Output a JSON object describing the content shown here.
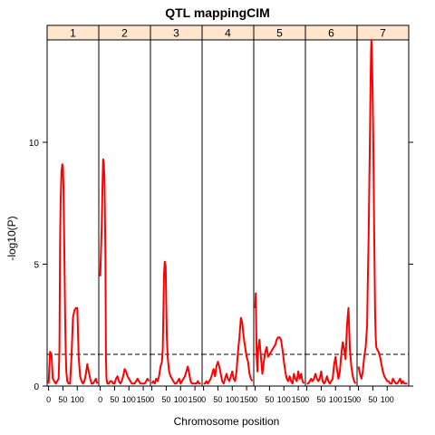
{
  "chart_data": {
    "type": "line",
    "title": "QTL mappingCIM",
    "xlabel": "Chromosome position",
    "ylabel": "-log10(P)",
    "ylim": [
      0,
      14.2
    ],
    "y_ticks": [
      0,
      5,
      10
    ],
    "threshold": 1.3,
    "colors": {
      "series": "#ff0000",
      "strip": "#ffe5cc",
      "threshold": "#000000"
    },
    "panels": [
      {
        "label": "1",
        "xlim": [
          -5,
          175
        ],
        "ticks": [
          0,
          50,
          100
        ],
        "x": [
          0,
          5,
          10,
          15,
          20,
          25,
          30,
          35,
          38,
          40,
          42,
          45,
          48,
          50,
          52,
          55,
          58,
          60,
          62,
          65,
          70,
          75,
          80,
          85,
          90,
          95,
          100,
          105,
          110,
          115,
          120,
          125,
          130,
          135,
          140,
          145,
          150,
          155,
          160,
          165,
          170
        ],
        "y": [
          0.1,
          1.4,
          1.3,
          0.3,
          0.2,
          0.1,
          0.2,
          0.3,
          1.5,
          6.0,
          7.5,
          8.8,
          9.1,
          9.0,
          8.2,
          5.5,
          2.5,
          1.3,
          0.6,
          0.2,
          0.1,
          0.1,
          1.2,
          2.8,
          3.1,
          3.2,
          3.2,
          1.2,
          0.4,
          0.2,
          0.1,
          0.2,
          0.5,
          0.9,
          0.6,
          0.3,
          0.1,
          0.1,
          0.2,
          0.3,
          0.1
        ]
      },
      {
        "label": "2",
        "xlim": [
          -5,
          175
        ],
        "ticks": [
          0,
          50,
          100,
          150
        ],
        "x": [
          0,
          5,
          8,
          10,
          12,
          15,
          18,
          20,
          22,
          25,
          30,
          35,
          40,
          45,
          50,
          55,
          60,
          65,
          70,
          75,
          80,
          85,
          90,
          95,
          100,
          105,
          110,
          115,
          120,
          125,
          130,
          135,
          140,
          145,
          150,
          155,
          160,
          165,
          170
        ],
        "y": [
          4.5,
          6.5,
          8.2,
          9.3,
          9.2,
          8.5,
          5.5,
          1.2,
          0.3,
          0.1,
          0.1,
          0.2,
          0.2,
          0.1,
          0.1,
          0.3,
          0.4,
          0.2,
          0.1,
          0.2,
          0.4,
          0.7,
          0.6,
          0.4,
          0.3,
          0.2,
          0.1,
          0.1,
          0.1,
          0.2,
          0.3,
          0.2,
          0.1,
          0.1,
          0.1,
          0.1,
          0.2,
          0.3,
          0.2
        ]
      },
      {
        "label": "3",
        "xlim": [
          -5,
          175
        ],
        "ticks": [
          0,
          50,
          100,
          150
        ],
        "x": [
          0,
          5,
          10,
          15,
          20,
          25,
          30,
          35,
          38,
          40,
          42,
          45,
          48,
          50,
          52,
          55,
          60,
          65,
          70,
          75,
          80,
          85,
          90,
          95,
          100,
          105,
          110,
          115,
          120,
          125,
          130,
          135,
          140,
          145,
          150,
          155,
          160,
          165,
          170
        ],
        "y": [
          0.1,
          0.2,
          0.1,
          0.3,
          0.2,
          0.4,
          0.8,
          1.0,
          1.5,
          3.0,
          4.5,
          5.1,
          4.9,
          3.5,
          2.0,
          1.2,
          0.6,
          0.4,
          0.3,
          0.2,
          0.1,
          0.1,
          0.2,
          0.3,
          0.1,
          0.2,
          0.3,
          0.4,
          0.6,
          0.8,
          0.5,
          0.2,
          0.1,
          0.1,
          0.1,
          0.1,
          0.2,
          0.1,
          0.1
        ]
      },
      {
        "label": "4",
        "xlim": [
          -5,
          175
        ],
        "ticks": [
          0,
          50,
          100,
          150
        ],
        "x": [
          0,
          5,
          10,
          15,
          20,
          25,
          30,
          35,
          40,
          45,
          50,
          55,
          60,
          65,
          70,
          75,
          80,
          85,
          90,
          95,
          100,
          105,
          110,
          115,
          120,
          125,
          130,
          135,
          140,
          145,
          150,
          155,
          160,
          165,
          170
        ],
        "y": [
          0.1,
          0.1,
          0.2,
          0.1,
          0.2,
          0.3,
          0.5,
          0.7,
          0.4,
          0.8,
          1.0,
          0.8,
          0.5,
          0.2,
          0.1,
          0.3,
          0.5,
          0.3,
          0.2,
          0.4,
          0.6,
          0.3,
          0.2,
          0.6,
          1.4,
          2.0,
          2.8,
          2.6,
          2.0,
          1.6,
          1.2,
          1.0,
          0.5,
          0.3,
          0.2
        ]
      },
      {
        "label": "5",
        "xlim": [
          -5,
          175
        ],
        "ticks": [
          0,
          50,
          100,
          150
        ],
        "x": [
          0,
          2,
          5,
          8,
          10,
          15,
          20,
          25,
          30,
          35,
          40,
          45,
          50,
          55,
          60,
          65,
          70,
          75,
          80,
          85,
          90,
          95,
          100,
          105,
          110,
          115,
          120,
          125,
          130,
          135,
          140,
          145,
          150,
          155,
          160,
          165,
          170
        ],
        "y": [
          3.2,
          3.8,
          1.2,
          0.6,
          1.5,
          1.9,
          1.2,
          0.5,
          1.0,
          1.4,
          1.6,
          1.2,
          1.3,
          1.4,
          1.5,
          1.6,
          1.7,
          1.9,
          2.0,
          2.0,
          1.9,
          1.5,
          1.0,
          0.6,
          0.3,
          0.2,
          0.4,
          0.2,
          0.1,
          0.5,
          0.3,
          0.2,
          0.6,
          0.3,
          0.5,
          0.2,
          0.1
        ]
      },
      {
        "label": "6",
        "xlim": [
          -5,
          175
        ],
        "ticks": [
          0,
          50,
          100,
          150
        ],
        "x": [
          0,
          5,
          10,
          15,
          20,
          25,
          30,
          35,
          40,
          45,
          50,
          55,
          60,
          65,
          70,
          75,
          80,
          85,
          90,
          95,
          100,
          105,
          110,
          115,
          120,
          125,
          130,
          135,
          140,
          145,
          150,
          155,
          160,
          165,
          170
        ],
        "y": [
          0.1,
          0.1,
          0.2,
          0.3,
          0.2,
          0.3,
          0.5,
          0.3,
          0.2,
          0.3,
          0.6,
          0.2,
          0.1,
          0.2,
          0.4,
          0.2,
          0.1,
          0.2,
          0.3,
          0.9,
          1.2,
          0.7,
          0.3,
          0.6,
          1.3,
          1.8,
          1.5,
          1.1,
          2.5,
          3.2,
          1.5,
          0.8,
          0.4,
          0.2,
          0.1
        ]
      },
      {
        "label": "7",
        "xlim": [
          -5,
          175
        ],
        "ticks": [
          0,
          50,
          100
        ],
        "x": [
          0,
          5,
          10,
          15,
          20,
          25,
          30,
          32,
          35,
          38,
          40,
          42,
          44,
          45,
          46,
          48,
          50,
          52,
          54,
          56,
          58,
          60,
          62,
          65,
          70,
          75,
          80,
          85,
          90,
          95,
          100,
          105,
          110,
          115,
          120,
          125,
          130,
          135,
          140,
          145,
          150,
          155,
          160,
          165,
          170
        ],
        "y": [
          0.8,
          0.5,
          0.3,
          0.6,
          1.2,
          1.6,
          2.5,
          4.0,
          6.0,
          8.5,
          10.5,
          12.5,
          13.8,
          14.2,
          14.0,
          12.8,
          11.5,
          9.5,
          7.0,
          5.0,
          3.0,
          2.0,
          1.6,
          1.5,
          1.4,
          1.2,
          0.9,
          0.6,
          0.4,
          0.3,
          0.2,
          0.2,
          0.1,
          0.1,
          0.3,
          0.2,
          0.1,
          0.1,
          0.2,
          0.3,
          0.1,
          0.2,
          0.1,
          0.1,
          0.1
        ]
      }
    ]
  }
}
